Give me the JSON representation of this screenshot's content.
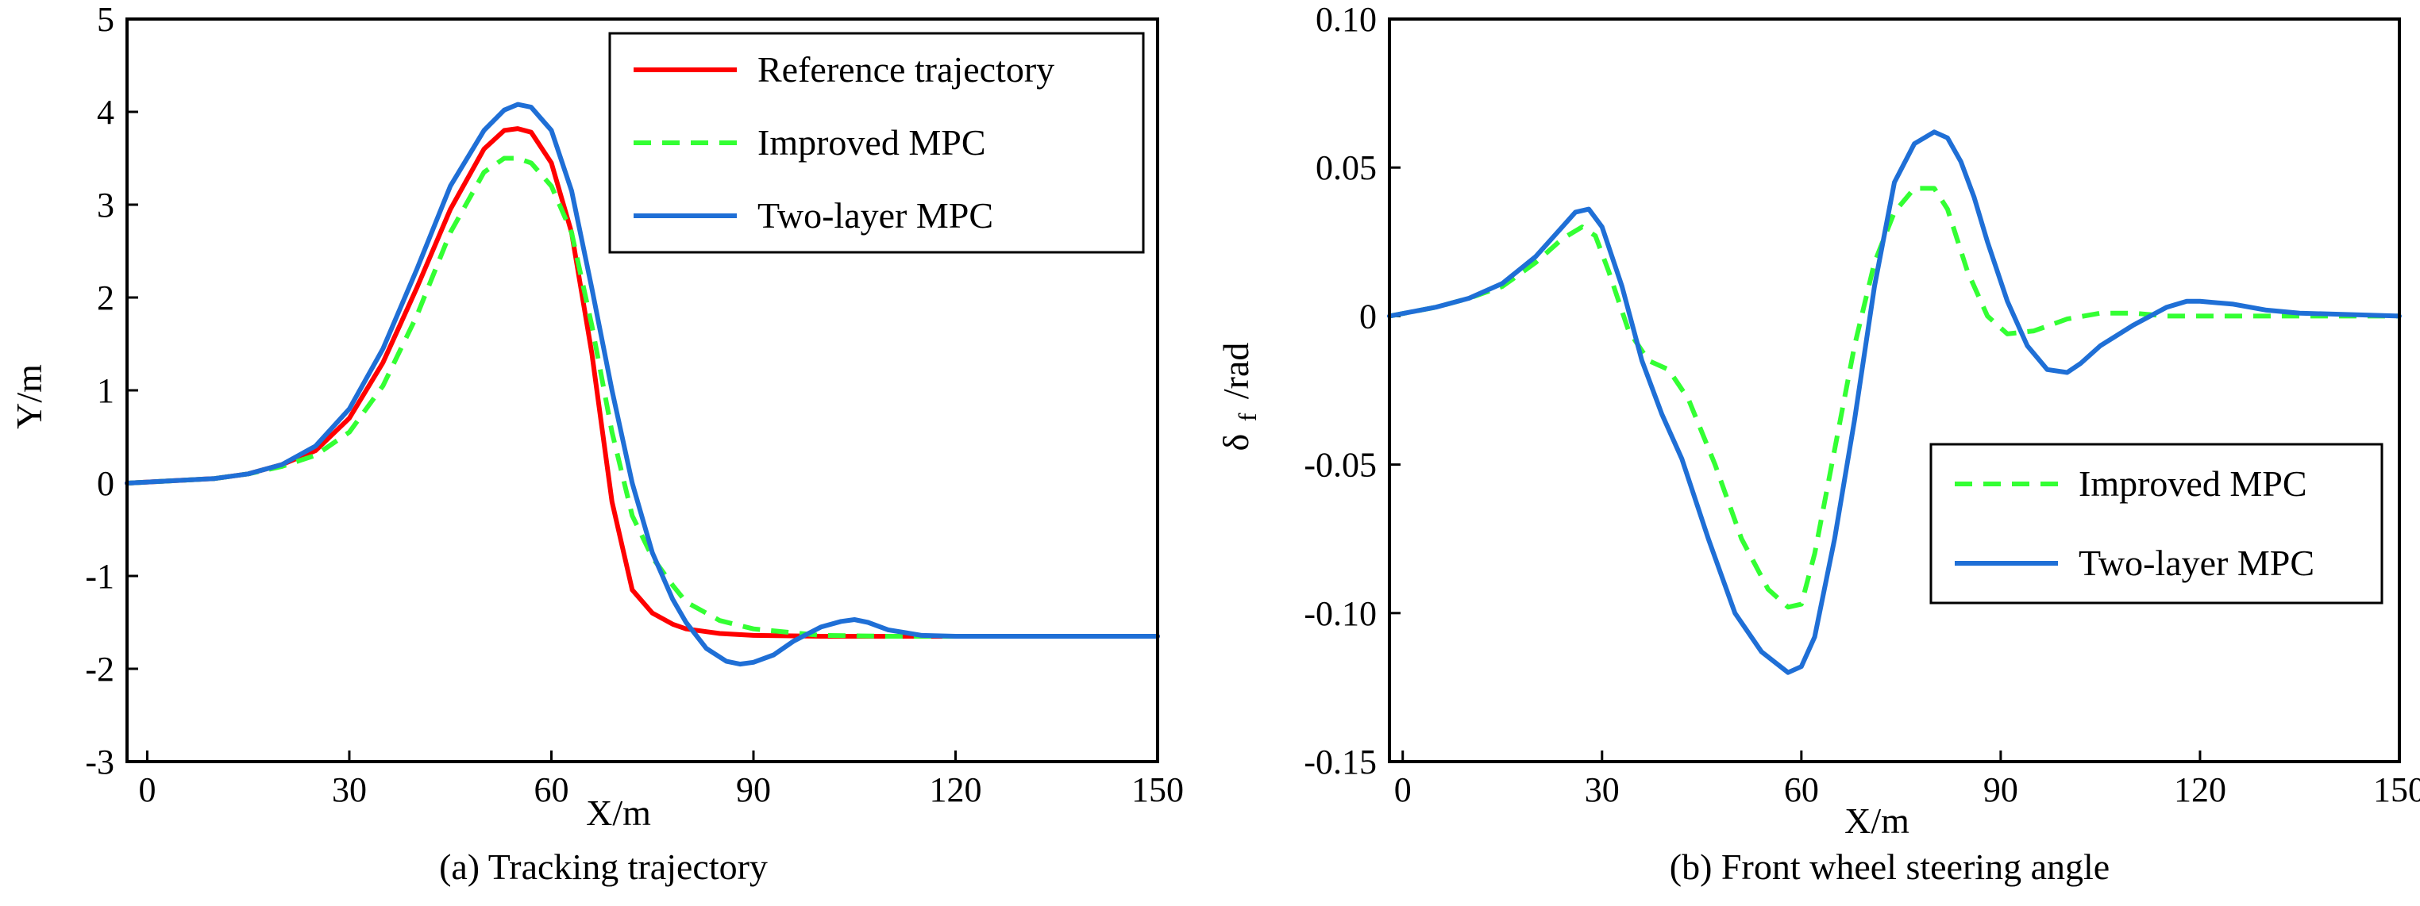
{
  "chart_data": [
    {
      "type": "line",
      "caption": "(a) Tracking trajectory",
      "xlabel": "X/m",
      "ylabel": "Y/m",
      "xlim": [
        -3,
        150
      ],
      "ylim": [
        -3,
        5
      ],
      "xticks": [
        "0",
        "30",
        "60",
        "90",
        "120",
        "150"
      ],
      "yticks": [
        "-3",
        "-2",
        "-1",
        "0",
        "1",
        "2",
        "3",
        "4",
        "5"
      ],
      "legend_position": "top-right",
      "series": [
        {
          "name": "Reference trajectory",
          "color": "#ff0000",
          "dash": "solid",
          "x": [
            -3,
            10,
            15,
            20,
            25,
            30,
            35,
            40,
            45,
            50,
            53,
            55,
            57,
            60,
            63,
            66,
            69,
            72,
            75,
            78,
            80,
            85,
            90,
            100,
            110,
            120,
            150
          ],
          "y": [
            0,
            0.05,
            0.1,
            0.2,
            0.35,
            0.7,
            1.3,
            2.1,
            2.95,
            3.6,
            3.8,
            3.82,
            3.78,
            3.45,
            2.7,
            1.4,
            -0.2,
            -1.15,
            -1.4,
            -1.52,
            -1.57,
            -1.62,
            -1.64,
            -1.65,
            -1.65,
            -1.65,
            -1.65
          ]
        },
        {
          "name": "Improved MPC",
          "color": "#33ff33",
          "dash": "dashed",
          "x": [
            -3,
            10,
            15,
            20,
            25,
            30,
            35,
            40,
            45,
            50,
            53,
            55,
            57,
            60,
            63,
            66,
            69,
            72,
            75,
            78,
            80,
            85,
            90,
            100,
            110,
            120,
            150
          ],
          "y": [
            0,
            0.05,
            0.1,
            0.18,
            0.3,
            0.55,
            1.05,
            1.8,
            2.7,
            3.35,
            3.5,
            3.5,
            3.45,
            3.2,
            2.7,
            1.7,
            0.55,
            -0.35,
            -0.8,
            -1.1,
            -1.28,
            -1.48,
            -1.57,
            -1.64,
            -1.65,
            -1.65,
            -1.65
          ]
        },
        {
          "name": "Two-layer MPC",
          "color": "#1f6fd6",
          "dash": "solid",
          "x": [
            -3,
            10,
            15,
            20,
            25,
            30,
            35,
            40,
            45,
            50,
            53,
            55,
            57,
            60,
            63,
            66,
            69,
            72,
            75,
            78,
            80,
            83,
            86,
            88,
            90,
            93,
            96,
            100,
            103,
            105,
            107,
            110,
            115,
            120,
            150
          ],
          "y": [
            0,
            0.05,
            0.1,
            0.2,
            0.4,
            0.8,
            1.45,
            2.3,
            3.2,
            3.8,
            4.02,
            4.08,
            4.05,
            3.8,
            3.15,
            2.1,
            1.0,
            0.0,
            -0.75,
            -1.25,
            -1.5,
            -1.78,
            -1.92,
            -1.95,
            -1.93,
            -1.85,
            -1.7,
            -1.55,
            -1.49,
            -1.47,
            -1.5,
            -1.58,
            -1.64,
            -1.65,
            -1.65
          ]
        }
      ]
    },
    {
      "type": "line",
      "caption": "(b) Front wheel steering angle",
      "xlabel": "X/m",
      "ylabel": "δ f /rad",
      "ylabel_parts": [
        "δ",
        "f",
        "/rad"
      ],
      "xlim": [
        -2,
        150
      ],
      "ylim": [
        -0.15,
        0.1
      ],
      "xticks": [
        "0",
        "30",
        "60",
        "90",
        "120",
        "150"
      ],
      "yticks": [
        "-0.15",
        "-0.10",
        "-0.05",
        "0",
        "0.05",
        "0.10"
      ],
      "legend_position": "bottom-right",
      "series": [
        {
          "name": "Improved MPC",
          "color": "#33ff33",
          "dash": "dashed",
          "x": [
            -2,
            5,
            10,
            15,
            20,
            24,
            27,
            29,
            31,
            34,
            37,
            40,
            43,
            47,
            51,
            55,
            58,
            60,
            62,
            65,
            68,
            71,
            74,
            77,
            80,
            82,
            85,
            88,
            91,
            95,
            100,
            105,
            110,
            115,
            120,
            150
          ],
          "y": [
            0,
            0.003,
            0.006,
            0.01,
            0.018,
            0.026,
            0.03,
            0.027,
            0.015,
            -0.005,
            -0.015,
            -0.018,
            -0.028,
            -0.05,
            -0.075,
            -0.092,
            -0.098,
            -0.097,
            -0.08,
            -0.045,
            -0.01,
            0.018,
            0.035,
            0.043,
            0.043,
            0.036,
            0.015,
            0.0,
            -0.006,
            -0.005,
            -0.001,
            0.001,
            0.001,
            0.0,
            0.0,
            0.0
          ]
        },
        {
          "name": "Two-layer MPC",
          "color": "#1f6fd6",
          "dash": "solid",
          "x": [
            -2,
            5,
            10,
            15,
            20,
            24,
            26,
            28,
            30,
            33,
            36,
            39,
            42,
            46,
            50,
            54,
            58,
            60,
            62,
            65,
            68,
            71,
            74,
            77,
            80,
            82,
            84,
            86,
            88,
            91,
            94,
            97,
            100,
            102,
            105,
            110,
            115,
            118,
            120,
            125,
            130,
            135,
            150
          ],
          "y": [
            0,
            0.003,
            0.006,
            0.011,
            0.02,
            0.03,
            0.035,
            0.036,
            0.03,
            0.01,
            -0.015,
            -0.033,
            -0.048,
            -0.075,
            -0.1,
            -0.113,
            -0.12,
            -0.118,
            -0.108,
            -0.075,
            -0.035,
            0.01,
            0.045,
            0.058,
            0.062,
            0.06,
            0.052,
            0.04,
            0.025,
            0.005,
            -0.01,
            -0.018,
            -0.019,
            -0.016,
            -0.01,
            -0.003,
            0.003,
            0.005,
            0.005,
            0.004,
            0.002,
            0.001,
            0.0
          ]
        }
      ]
    }
  ]
}
